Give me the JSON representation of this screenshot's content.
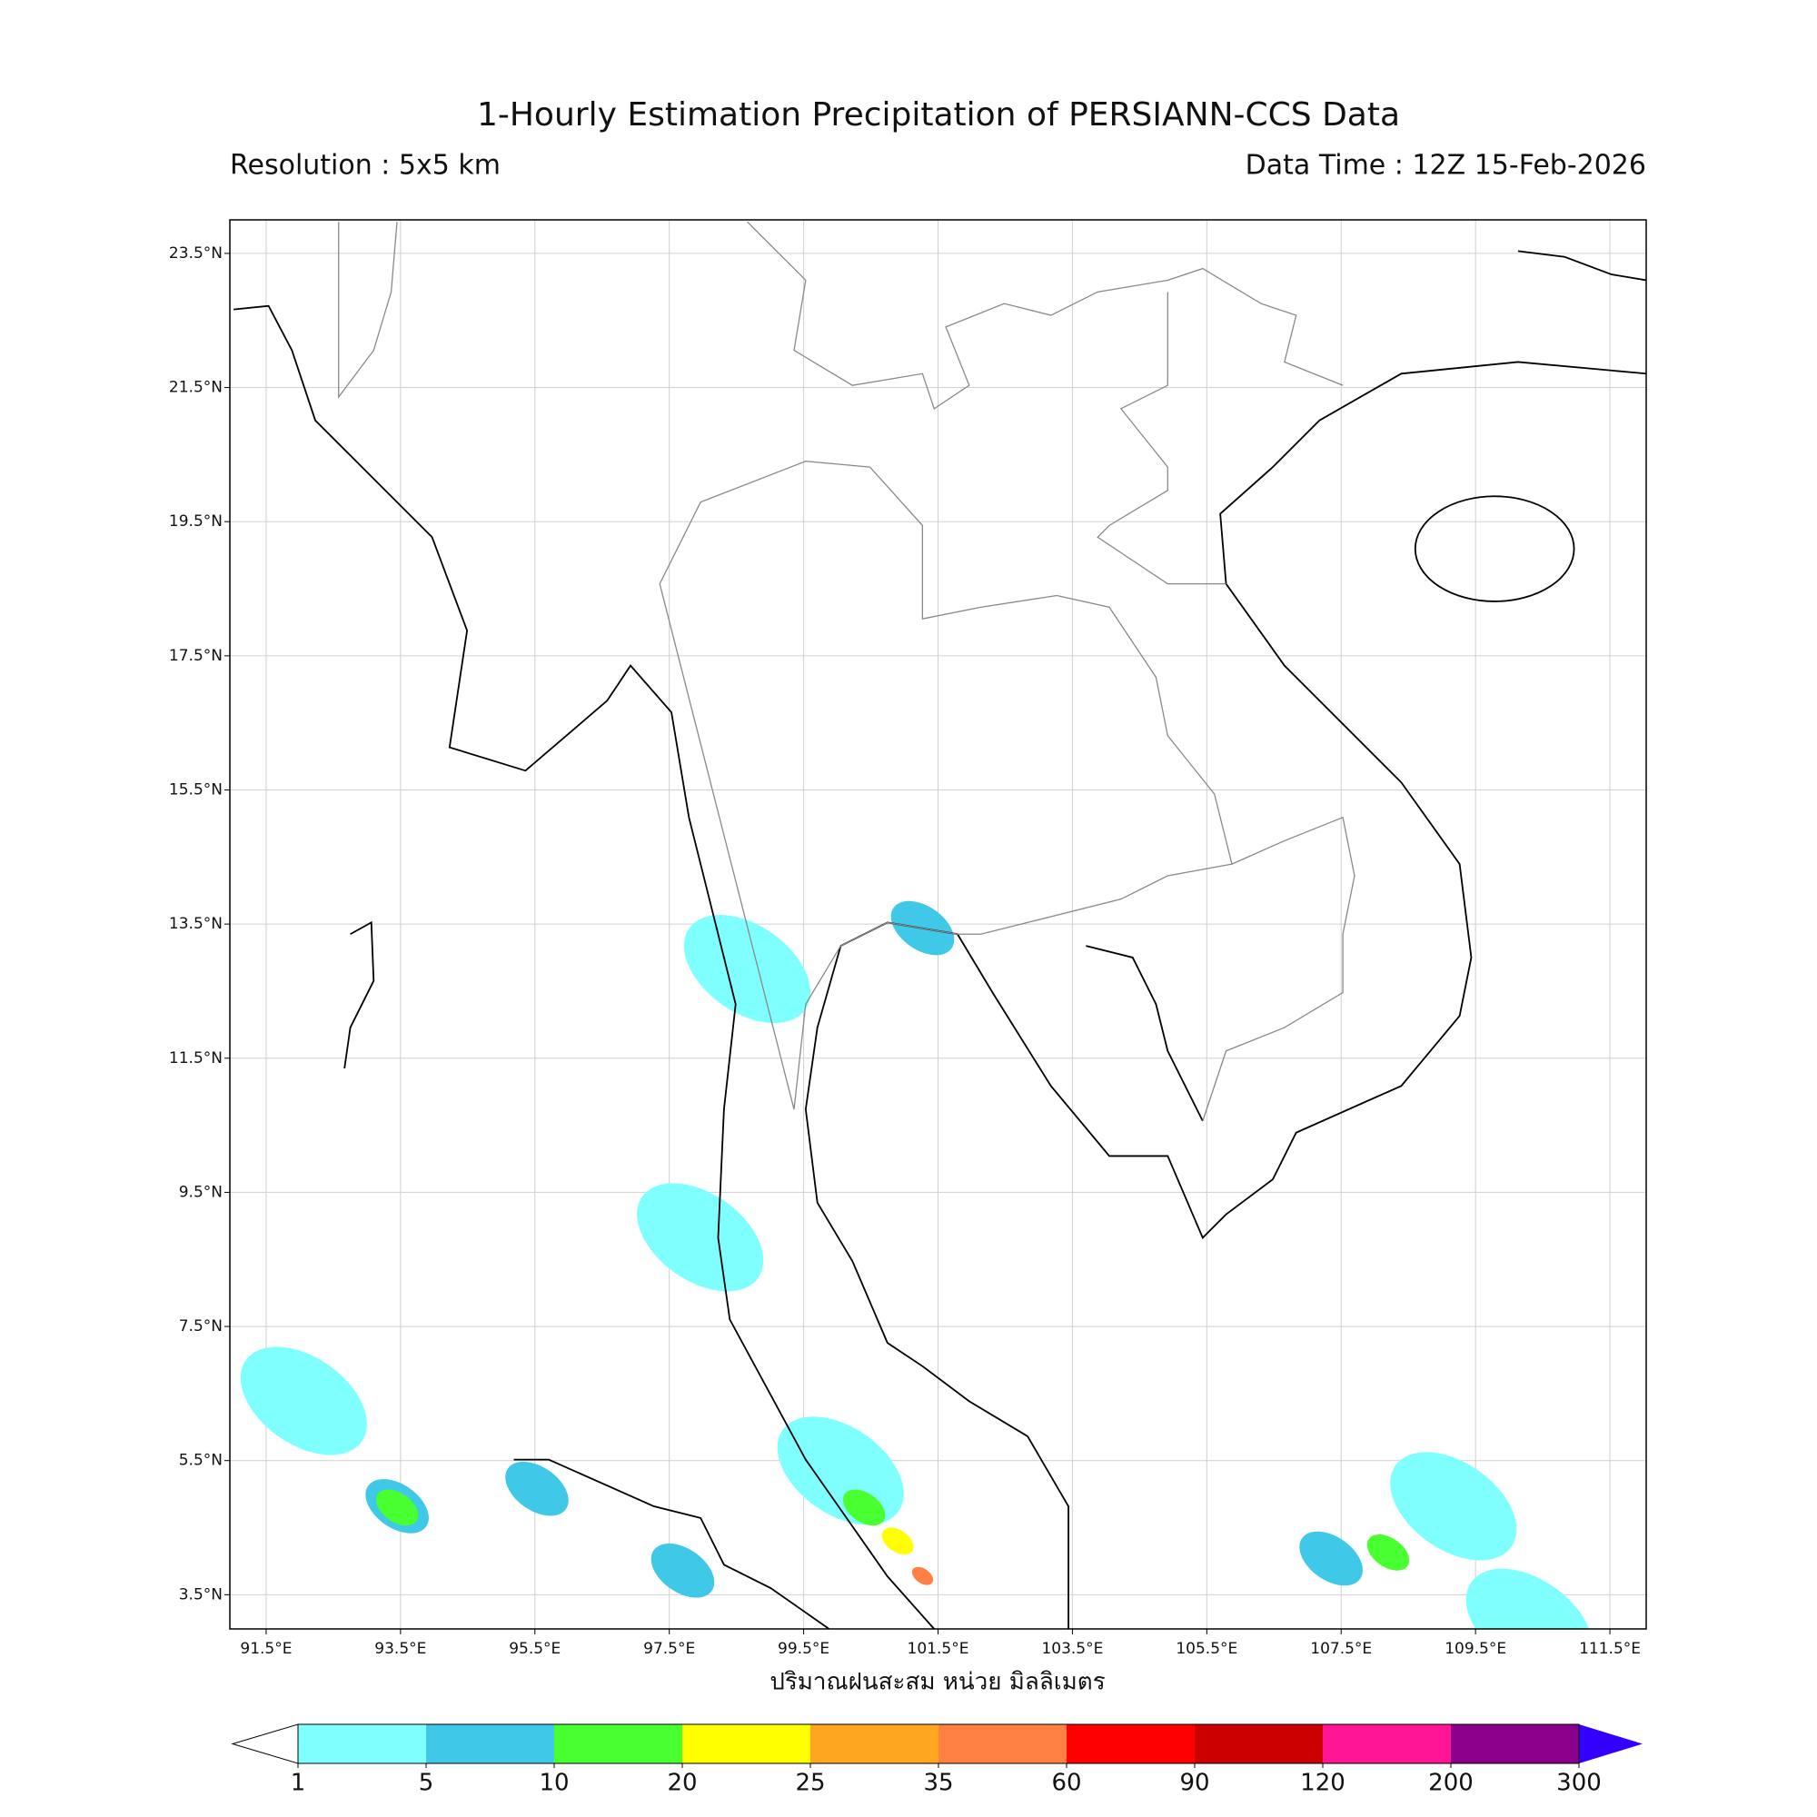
{
  "header": {
    "title": "1-Hourly Estimation Precipitation of PERSIANN-CCS Data",
    "resolution": "Resolution : 5x5 km",
    "data_time": "Data Time : 12Z 15-Feb-2026"
  },
  "map": {
    "lonlim": [
      90.96,
      112.04
    ],
    "latlim": [
      2.99,
      24.0
    ],
    "lon_ticks": [
      {
        "value": 91.5,
        "label": "91.5°E"
      },
      {
        "value": 93.5,
        "label": "93.5°E"
      },
      {
        "value": 95.5,
        "label": "95.5°E"
      },
      {
        "value": 97.5,
        "label": "97.5°E"
      },
      {
        "value": 99.5,
        "label": "99.5°E"
      },
      {
        "value": 101.5,
        "label": "101.5°E"
      },
      {
        "value": 103.5,
        "label": "103.5°E"
      },
      {
        "value": 105.5,
        "label": "105.5°E"
      },
      {
        "value": 107.5,
        "label": "107.5°E"
      },
      {
        "value": 109.5,
        "label": "109.5°E"
      },
      {
        "value": 111.5,
        "label": "111.5°E"
      }
    ],
    "lat_ticks": [
      {
        "value": 23.5,
        "label": "23.5°N"
      },
      {
        "value": 21.5,
        "label": "21.5°N"
      },
      {
        "value": 19.5,
        "label": "19.5°N"
      },
      {
        "value": 17.5,
        "label": "17.5°N"
      },
      {
        "value": 15.5,
        "label": "15.5°N"
      },
      {
        "value": 13.5,
        "label": "13.5°N"
      },
      {
        "value": 11.5,
        "label": "11.5°N"
      },
      {
        "value": 9.5,
        "label": "9.5°N"
      },
      {
        "value": 7.5,
        "label": "7.5°N"
      },
      {
        "value": 5.5,
        "label": "5.5°N"
      },
      {
        "value": 3.5,
        "label": "3.5°N"
      }
    ],
    "grid": true,
    "rain_cells": [
      {
        "lon": 100.05,
        "lat": 5.35,
        "value": 1
      },
      {
        "lon": 100.4,
        "lat": 4.8,
        "value": 10
      },
      {
        "lon": 100.9,
        "lat": 4.3,
        "value": 20
      },
      {
        "lon": 101.27,
        "lat": 3.78,
        "value": 35
      },
      {
        "lon": 107.35,
        "lat": 4.04,
        "value": 5
      },
      {
        "lon": 108.2,
        "lat": 4.13,
        "value": 10
      },
      {
        "lon": 109.17,
        "lat": 4.82,
        "value": 1
      },
      {
        "lon": 93.45,
        "lat": 4.82,
        "value": 5
      },
      {
        "lon": 93.45,
        "lat": 4.8,
        "value": 10
      },
      {
        "lon": 95.53,
        "lat": 5.08,
        "value": 5
      },
      {
        "lon": 97.7,
        "lat": 3.86,
        "value": 5
      },
      {
        "lon": 92.06,
        "lat": 6.39,
        "value": 1
      },
      {
        "lon": 97.96,
        "lat": 8.83,
        "value": 1
      },
      {
        "lon": 98.66,
        "lat": 12.83,
        "value": 1
      },
      {
        "lon": 101.27,
        "lat": 13.44,
        "value": 5
      },
      {
        "lon": 110.3,
        "lat": 3.08,
        "value": 1
      }
    ],
    "x_label": "ปริมาณฝนสะสม หน่วย มิลลิเมตร"
  },
  "colorbar": {
    "levels": [
      1,
      5,
      10,
      20,
      25,
      35,
      60,
      90,
      120,
      200,
      300
    ],
    "colors": [
      "#80ffff",
      "#40c8e8",
      "#48ff30",
      "#ffff00",
      "#ffa520",
      "#ff8040",
      "#ff0000",
      "#cc0000",
      "#ff1493",
      "#8b008b"
    ],
    "under_color": "#ffffff",
    "over_color": "#3300ff"
  }
}
